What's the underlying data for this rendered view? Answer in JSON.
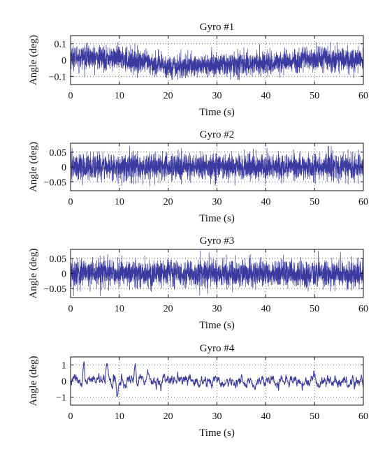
{
  "chart_data": [
    {
      "type": "line",
      "title": "Gyro #1",
      "xlabel": "Time (s)",
      "ylabel": "Angle (deg)",
      "xlim": [
        0,
        60
      ],
      "ylim": [
        -0.15,
        0.15
      ],
      "xticks": [
        0,
        10,
        20,
        30,
        40,
        50,
        60
      ],
      "xtick_labels": [
        "0",
        "10",
        "20",
        "30",
        "40",
        "50",
        "60"
      ],
      "yticks": [
        0.1,
        0,
        -0.1
      ],
      "ytick_labels": [
        "0.1",
        "0",
        "−0.1"
      ],
      "grid": "dotted",
      "color": "#3a3aa0",
      "series": [
        {
          "noise": "white_noise",
          "samples": 3000,
          "x_range": [
            0,
            60
          ],
          "mean_profile": [
            {
              "x": 0,
              "y": 0.02
            },
            {
              "x": 10,
              "y": 0.01
            },
            {
              "x": 20,
              "y": -0.04
            },
            {
              "x": 30,
              "y": -0.03
            },
            {
              "x": 40,
              "y": -0.02
            },
            {
              "x": 50,
              "y": 0.01
            },
            {
              "x": 60,
              "y": 0.0
            }
          ],
          "noise_std": 0.035,
          "peak_max": 0.11,
          "peak_min": -0.12
        }
      ]
    },
    {
      "type": "line",
      "title": "Gyro #2",
      "xlabel": "Time (s)",
      "ylabel": "Angle (deg)",
      "xlim": [
        0,
        60
      ],
      "ylim": [
        -0.08,
        0.08
      ],
      "xticks": [
        0,
        10,
        20,
        30,
        40,
        50,
        60
      ],
      "xtick_labels": [
        "0",
        "10",
        "20",
        "30",
        "40",
        "50",
        "60"
      ],
      "yticks": [
        0.05,
        0,
        -0.05
      ],
      "ytick_labels": [
        "0.05",
        "0",
        "−0.05"
      ],
      "grid": "dotted",
      "color": "#3a3aa0",
      "series": [
        {
          "noise": "white_noise",
          "samples": 3000,
          "x_range": [
            0,
            60
          ],
          "mean_profile": [
            {
              "x": 0,
              "y": 0.0
            },
            {
              "x": 60,
              "y": 0.0
            }
          ],
          "noise_std": 0.022,
          "peak_max": 0.07,
          "peak_min": -0.075
        }
      ]
    },
    {
      "type": "line",
      "title": "Gyro #3",
      "xlabel": "Time (s)",
      "ylabel": "Angle (deg)",
      "xlim": [
        0,
        60
      ],
      "ylim": [
        -0.08,
        0.08
      ],
      "xticks": [
        0,
        10,
        20,
        30,
        40,
        50,
        60
      ],
      "xtick_labels": [
        "0",
        "10",
        "20",
        "30",
        "40",
        "50",
        "60"
      ],
      "yticks": [
        0.05,
        0,
        -0.05
      ],
      "ytick_labels": [
        "0.05",
        "0",
        "−0.05"
      ],
      "grid": "dotted",
      "color": "#3a3aa0",
      "series": [
        {
          "noise": "white_noise",
          "samples": 3000,
          "x_range": [
            0,
            60
          ],
          "mean_profile": [
            {
              "x": 0,
              "y": 0.0
            },
            {
              "x": 60,
              "y": 0.0
            }
          ],
          "noise_std": 0.022,
          "peak_max": 0.08,
          "peak_min": -0.075
        }
      ]
    },
    {
      "type": "line",
      "title": "Gyro #4",
      "xlabel": "Time (s)",
      "ylabel": "Angle (deg)",
      "xlim": [
        0,
        60
      ],
      "ylim": [
        -1.5,
        1.5
      ],
      "xticks": [
        0,
        10,
        20,
        30,
        40,
        50,
        60
      ],
      "xtick_labels": [
        "0",
        "10",
        "20",
        "30",
        "40",
        "50",
        "60"
      ],
      "yticks": [
        1,
        0,
        -1
      ],
      "ytick_labels": [
        "1",
        "0",
        "−1"
      ],
      "grid": "dotted",
      "color": "#3a3aa0",
      "series": [
        {
          "noise": "smooth_oscillation",
          "samples": 1200,
          "x_range": [
            0,
            60
          ],
          "mean_profile": [
            {
              "x": 0,
              "y": 0.0
            },
            {
              "x": 60,
              "y": 0.0
            }
          ],
          "noise_std": 0.12,
          "events": [
            {
              "x": 2.7,
              "y": 1.1
            },
            {
              "x": 2.1,
              "y": -0.4
            },
            {
              "x": 7.5,
              "y": 0.7
            },
            {
              "x": 9.6,
              "y": -0.95
            },
            {
              "x": 13.2,
              "y": 0.8
            },
            {
              "x": 18.5,
              "y": -0.5
            },
            {
              "x": 27.5,
              "y": 0.55
            },
            {
              "x": 57.8,
              "y": 0.35
            }
          ]
        }
      ]
    }
  ]
}
